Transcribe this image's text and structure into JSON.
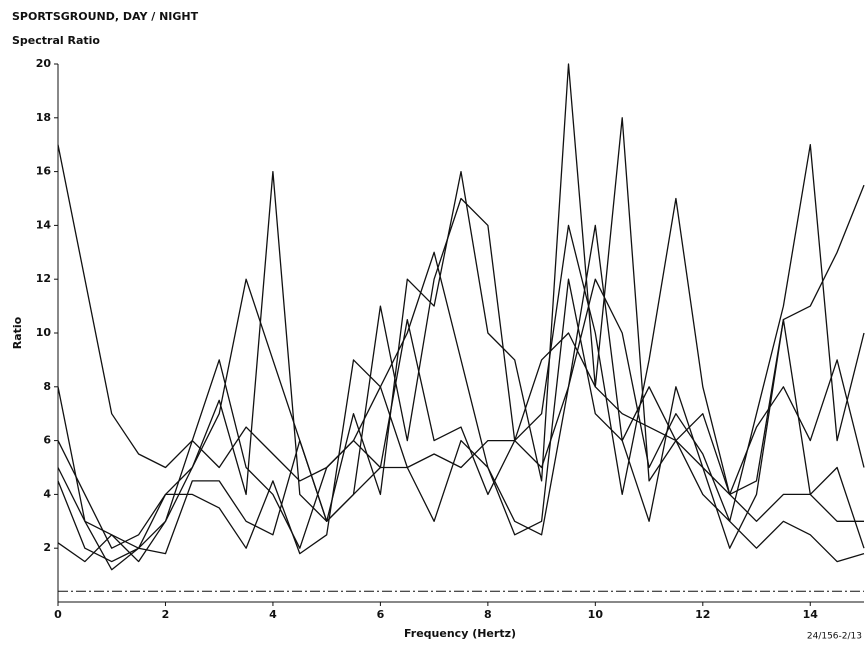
{
  "chart_data": {
    "type": "line",
    "title": "SPORTSGROUND, DAY  / NIGHT",
    "subtitle": "Spectral Ratio",
    "x_label": "Frequency (Hertz)",
    "y_label": "Ratio",
    "footnote": "24/156-2/13",
    "x": [
      0,
      0.5,
      1,
      1.5,
      2,
      2.5,
      3,
      3.5,
      4,
      4.5,
      5,
      5.5,
      6,
      6.5,
      7,
      7.5,
      8,
      8.5,
      9,
      9.5,
      10,
      10.5,
      11,
      11.5,
      12,
      12.5,
      13,
      13.5,
      14,
      14.5,
      15
    ],
    "series": [
      {
        "color": "#111111",
        "values": [
          17,
          12,
          7,
          5.5,
          5,
          6,
          5,
          6.5,
          5.5,
          4.5,
          5,
          6,
          5,
          5,
          5.5,
          5,
          6,
          6,
          9,
          10,
          8,
          7,
          6.5,
          6,
          5,
          4,
          4.5,
          10.5,
          11,
          13,
          15.5
        ]
      },
      {
        "color": "#111111",
        "values": [
          8,
          3,
          2.5,
          1.5,
          3,
          5,
          7.5,
          4,
          16,
          4,
          3,
          7,
          4,
          12,
          11,
          16,
          10,
          9,
          4.5,
          20,
          8,
          18,
          4.5,
          6,
          4,
          3,
          7,
          11,
          17,
          6,
          10
        ]
      },
      {
        "color": "#111111",
        "values": [
          6,
          4,
          2,
          2.5,
          4,
          5,
          7,
          12,
          9,
          6,
          3,
          4,
          11,
          6,
          12,
          15,
          14,
          6,
          5,
          8,
          14,
          6,
          8,
          6,
          7,
          4,
          3,
          4,
          4,
          3,
          3
        ]
      },
      {
        "color": "#111111",
        "values": [
          5,
          3,
          1.2,
          2,
          3,
          6,
          9,
          5,
          4,
          2,
          5,
          6,
          8,
          10,
          13,
          9,
          5,
          3,
          2.5,
          8,
          12,
          10,
          5,
          7,
          5.5,
          3,
          2,
          3,
          2.5,
          1.5,
          1.8
        ]
      },
      {
        "color": "#111111",
        "values": [
          4.5,
          2,
          1.5,
          2,
          1.8,
          4.5,
          4.5,
          3,
          2.5,
          6,
          3,
          4,
          5,
          10.5,
          6,
          6.5,
          4,
          6,
          7,
          14,
          10,
          4,
          9,
          15,
          8,
          4,
          6.5,
          8,
          6,
          9,
          5
        ]
      },
      {
        "color": "#111111",
        "values": [
          2.2,
          1.5,
          2.5,
          2,
          4,
          4,
          3.5,
          2,
          4.5,
          1.8,
          2.5,
          9,
          8,
          5,
          3,
          6,
          5,
          2.5,
          3,
          12,
          7,
          6,
          3,
          8,
          5,
          2,
          4,
          10.5,
          4,
          5,
          2
        ]
      }
    ],
    "hline": 0.4,
    "xlim": [
      0,
      15
    ],
    "xticks": [
      0,
      2,
      4,
      6,
      8,
      10,
      12,
      14
    ],
    "ylim": [
      0,
      20
    ],
    "yticks": [
      2,
      4,
      6,
      8,
      10,
      12,
      14,
      16,
      18,
      20
    ]
  }
}
